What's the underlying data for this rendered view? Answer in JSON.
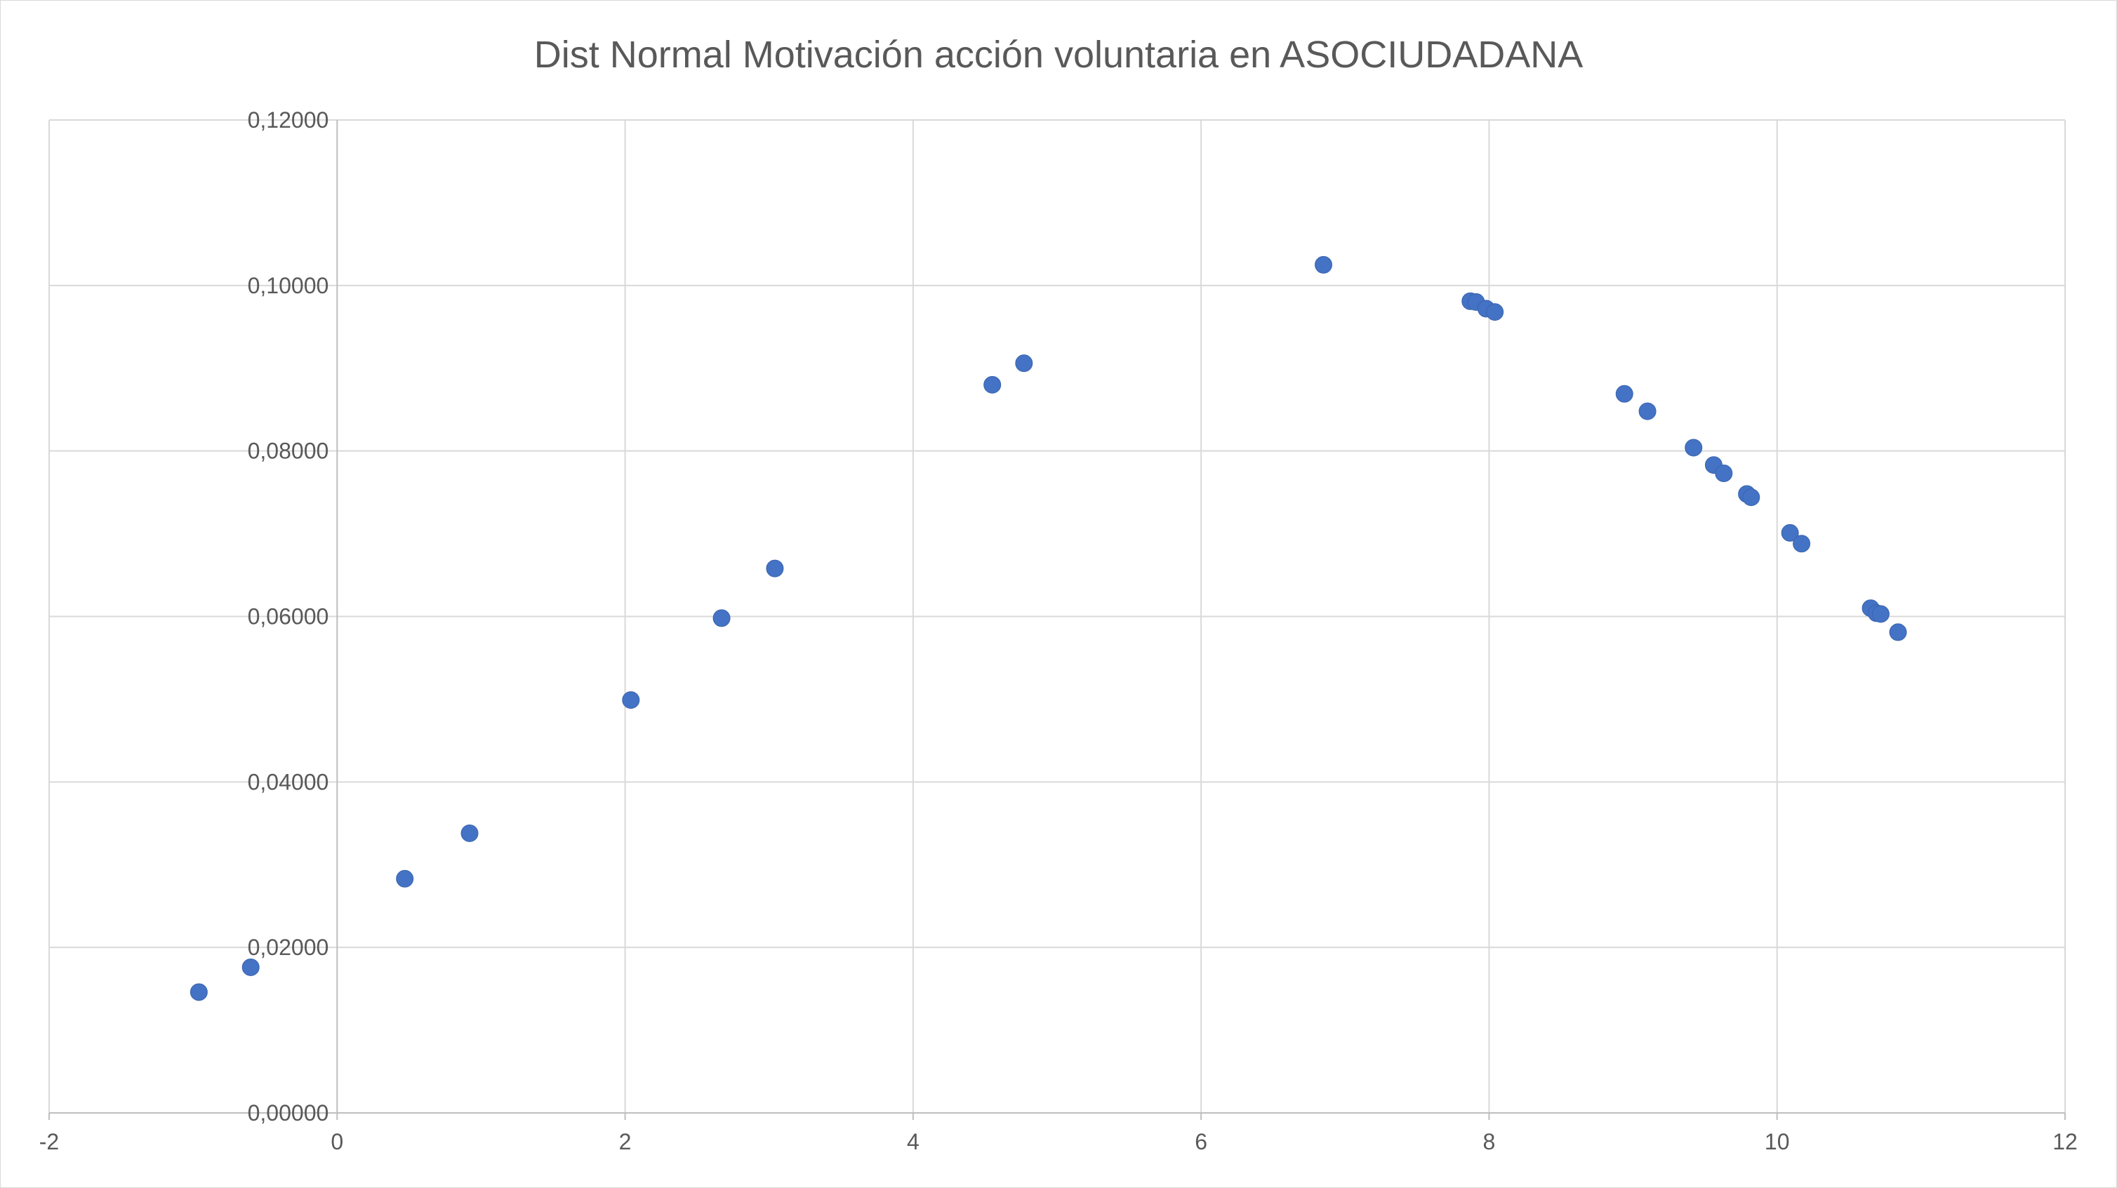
{
  "chart_data": {
    "type": "scatter",
    "title": "Dist Normal Motivación acción voluntaria en ASOCIUDADANA",
    "xlabel": "",
    "ylabel": "",
    "xlim": [
      -2,
      12
    ],
    "ylim": [
      0,
      0.12
    ],
    "x_ticks": [
      -2,
      0,
      2,
      4,
      6,
      8,
      10,
      12
    ],
    "x_tick_labels": [
      "-2",
      "0",
      "2",
      "4",
      "6",
      "8",
      "10",
      "12"
    ],
    "y_ticks": [
      0,
      0.02,
      0.04,
      0.06,
      0.08,
      0.1,
      0.12
    ],
    "y_tick_labels": [
      "0,00000",
      "0,02000",
      "0,04000",
      "0,06000",
      "0,08000",
      "0,10000",
      "0,12000"
    ],
    "grid": true,
    "legend": "none",
    "marker_color": "#4472c4",
    "series": [
      {
        "points": [
          {
            "x": -0.96,
            "y": 0.0146
          },
          {
            "x": -0.6,
            "y": 0.0176
          },
          {
            "x": 0.47,
            "y": 0.0283
          },
          {
            "x": 0.92,
            "y": 0.0338
          },
          {
            "x": 2.04,
            "y": 0.0499
          },
          {
            "x": 2.67,
            "y": 0.0598
          },
          {
            "x": 3.04,
            "y": 0.0658
          },
          {
            "x": 4.55,
            "y": 0.088
          },
          {
            "x": 4.77,
            "y": 0.0906
          },
          {
            "x": 6.85,
            "y": 0.1025
          },
          {
            "x": 7.87,
            "y": 0.0981
          },
          {
            "x": 7.91,
            "y": 0.098
          },
          {
            "x": 7.98,
            "y": 0.0972
          },
          {
            "x": 8.04,
            "y": 0.0968
          },
          {
            "x": 8.94,
            "y": 0.0869
          },
          {
            "x": 9.1,
            "y": 0.0848
          },
          {
            "x": 9.42,
            "y": 0.0804
          },
          {
            "x": 9.56,
            "y": 0.0783
          },
          {
            "x": 9.63,
            "y": 0.0773
          },
          {
            "x": 9.79,
            "y": 0.0748
          },
          {
            "x": 9.82,
            "y": 0.0744
          },
          {
            "x": 10.09,
            "y": 0.0701
          },
          {
            "x": 10.17,
            "y": 0.0688
          },
          {
            "x": 10.65,
            "y": 0.061
          },
          {
            "x": 10.69,
            "y": 0.0604
          },
          {
            "x": 10.72,
            "y": 0.0603
          },
          {
            "x": 10.84,
            "y": 0.0581
          }
        ]
      }
    ]
  }
}
